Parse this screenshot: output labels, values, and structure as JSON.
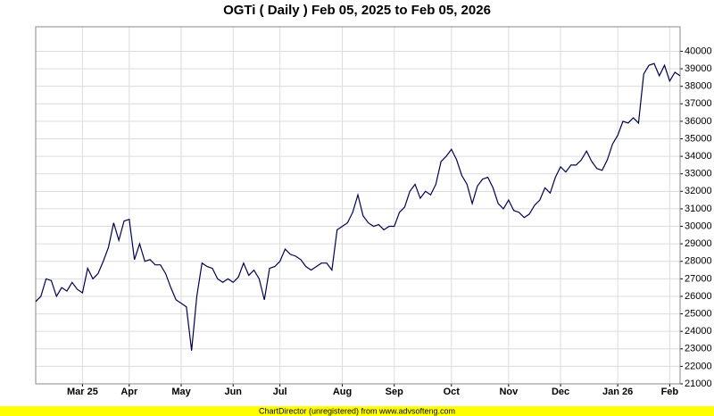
{
  "chart_data": {
    "type": "line",
    "title": "OGTi ( Daily ) Feb 05, 2025 to Feb 05, 2026",
    "footer": "ChartDirector (unregistered) from www.advsofteng.com",
    "categories": [
      null,
      null,
      null,
      null,
      null,
      null,
      null,
      null,
      null,
      "Mar 25",
      null,
      null,
      null,
      null,
      null,
      null,
      null,
      null,
      "Apr",
      null,
      null,
      null,
      null,
      null,
      null,
      null,
      null,
      null,
      "May",
      null,
      null,
      null,
      null,
      null,
      null,
      null,
      null,
      null,
      "Jun",
      null,
      null,
      null,
      null,
      null,
      null,
      null,
      null,
      "Jul",
      null,
      null,
      null,
      null,
      null,
      null,
      null,
      null,
      null,
      null,
      null,
      "Aug",
      null,
      null,
      null,
      null,
      null,
      null,
      null,
      null,
      null,
      "Sep",
      null,
      null,
      null,
      null,
      null,
      null,
      null,
      null,
      null,
      null,
      "Oct",
      null,
      null,
      null,
      null,
      null,
      null,
      null,
      null,
      null,
      null,
      "Nov",
      null,
      null,
      null,
      null,
      null,
      null,
      null,
      null,
      null,
      "Dec",
      null,
      null,
      null,
      null,
      null,
      null,
      null,
      null,
      null,
      null,
      "Jan 26",
      null,
      null,
      null,
      null,
      null,
      null,
      null,
      null,
      null,
      "Feb",
      null,
      null
    ],
    "values": [
      25700,
      26000,
      27000,
      26900,
      26000,
      26500,
      26300,
      26800,
      26400,
      26200,
      27600,
      27000,
      27300,
      28000,
      28800,
      30200,
      29200,
      30300,
      30400,
      28100,
      29000,
      28000,
      28100,
      27800,
      27800,
      27300,
      26500,
      25800,
      25600,
      25400,
      22900,
      26000,
      27900,
      27700,
      27600,
      27000,
      26800,
      27000,
      26800,
      27100,
      27900,
      27200,
      27500,
      27000,
      25800,
      27600,
      27700,
      28000,
      28700,
      28400,
      28300,
      28100,
      27700,
      27500,
      27700,
      27900,
      27900,
      27500,
      29800,
      30000,
      30200,
      30800,
      31800,
      30600,
      30200,
      30000,
      30100,
      29800,
      30000,
      30000,
      30800,
      31100,
      32000,
      32400,
      31600,
      32000,
      31800,
      32400,
      33700,
      34000,
      34400,
      33800,
      32900,
      32400,
      31300,
      32300,
      32700,
      32800,
      32200,
      31300,
      31000,
      31500,
      30900,
      30800,
      30500,
      30700,
      31200,
      31500,
      32200,
      31900,
      32800,
      33400,
      33100,
      33500,
      33500,
      33800,
      34300,
      33700,
      33300,
      33200,
      33800,
      34700,
      35200,
      36000,
      35900,
      36200,
      35900,
      38700,
      39200,
      39300,
      38600,
      39200,
      38300,
      38800,
      38600
    ],
    "color": "#000050",
    "ylim": [
      21000,
      41400
    ],
    "yticks": [
      21000,
      22000,
      23000,
      24000,
      25000,
      26000,
      27000,
      28000,
      29000,
      30000,
      31000,
      32000,
      33000,
      34000,
      35000,
      36000,
      37000,
      38000,
      39000,
      40000
    ],
    "grid": true
  }
}
